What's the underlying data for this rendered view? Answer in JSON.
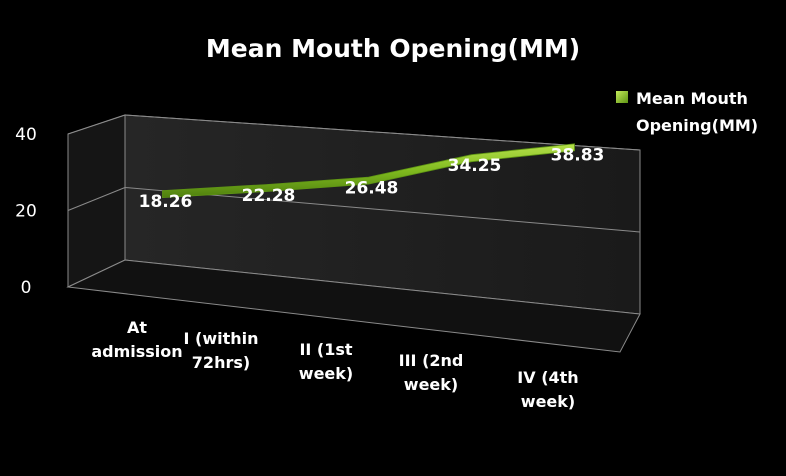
{
  "chart_data": {
    "type": "line",
    "title": "Mean Mouth Opening(MM)",
    "categories": [
      [
        "At",
        "admission"
      ],
      [
        "I (within",
        "72hrs)"
      ],
      [
        "II (1st",
        "week)"
      ],
      [
        "III (2nd",
        "week)"
      ],
      [
        "IV (4th",
        "week)"
      ]
    ],
    "series": [
      {
        "name": "Mean Mouth Opening(MM)",
        "name_lines": [
          "Mean Mouth",
          "Opening(MM)"
        ],
        "values": [
          18.26,
          22.28,
          26.48,
          34.25,
          38.83
        ],
        "value_labels": [
          "18.26",
          "22.28",
          "26.48",
          "34.25",
          "38.83"
        ],
        "color": "#7fba1f"
      }
    ],
    "yticks": [
      "0",
      "20",
      "40"
    ],
    "ylim": [
      0,
      40
    ],
    "grid": true,
    "legend_position": "top-right",
    "three_d": true
  }
}
